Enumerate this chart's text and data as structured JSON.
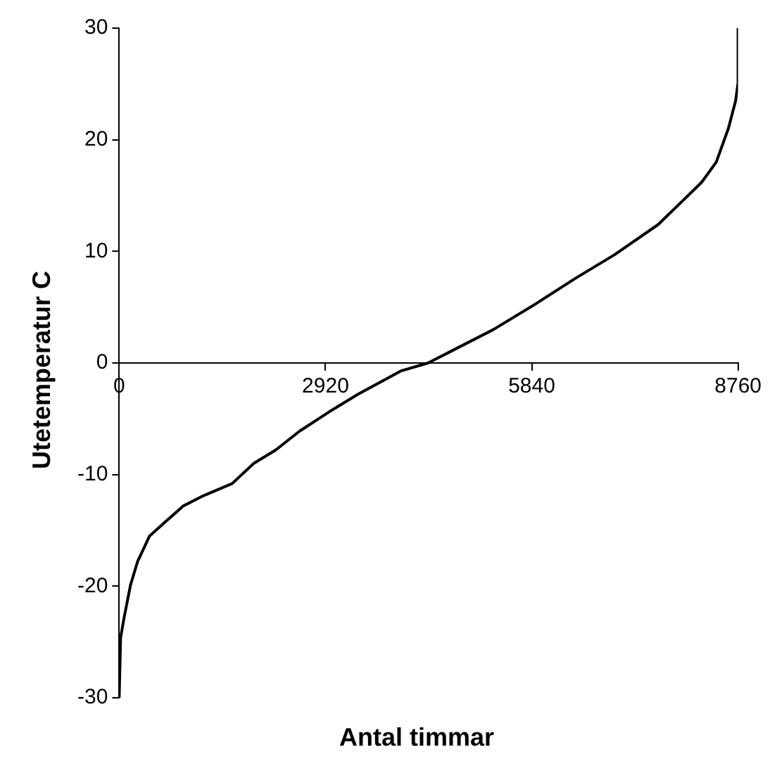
{
  "chart_data": {
    "type": "line",
    "xlabel": "Antal timmar",
    "ylabel": "Utetemperatur C",
    "x": [
      0,
      20,
      70,
      160,
      260,
      430,
      640,
      910,
      1190,
      1600,
      1905,
      2215,
      2556,
      2967,
      3380,
      3995,
      4373,
      4682,
      5299,
      5847,
      6463,
      7012,
      7629,
      7972,
      8246,
      8452,
      8623,
      8726,
      8760,
      8760
    ],
    "series": [
      {
        "color": "#000000",
        "values": [
          -30,
          -24.6,
          -22.8,
          -19.9,
          -17.8,
          -15.5,
          -14.3,
          -12.8,
          -11.9,
          -10.8,
          -9.0,
          -7.8,
          -6.1,
          -4.4,
          -2.8,
          -0.7,
          0,
          1.0,
          3.0,
          5.1,
          7.6,
          9.7,
          12.4,
          14.5,
          16.2,
          18.0,
          21.0,
          23.5,
          25.1,
          30
        ]
      }
    ],
    "xlim": [
      0,
      8760
    ],
    "xticks": [
      0,
      2920,
      5840,
      8760
    ],
    "ylim": [
      -30,
      30
    ],
    "yticks": [
      -30,
      -20,
      -10,
      0,
      10,
      20,
      30
    ],
    "grid": false,
    "legend": false,
    "marker": "none",
    "line_style": "solid"
  }
}
